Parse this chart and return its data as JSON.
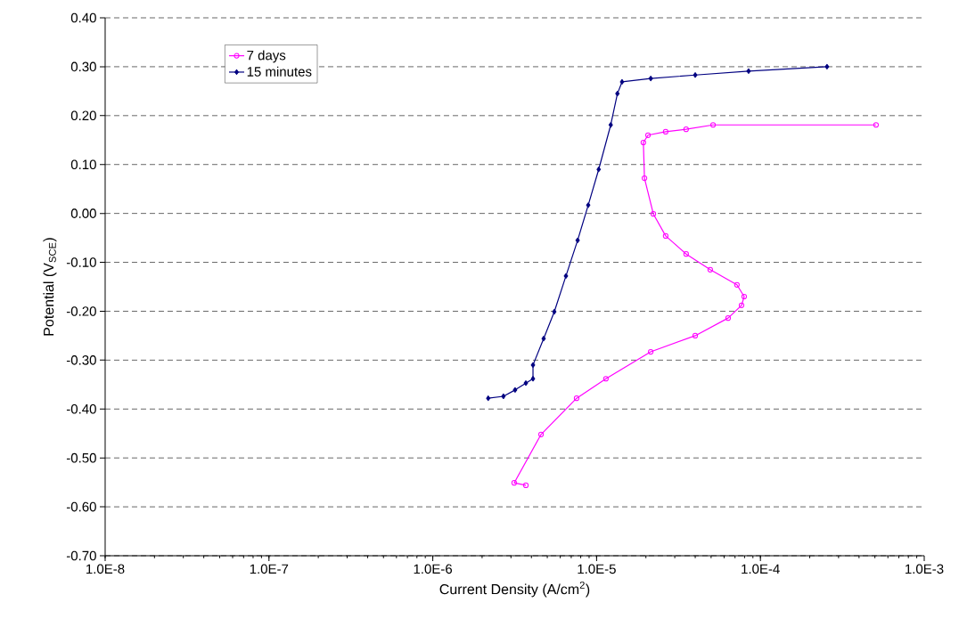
{
  "chart_data": {
    "type": "line",
    "xlabel": "Current Density (A/cm$^{2}$)",
    "ylabel": "Potential (V$_{SCE}$)",
    "log": "x",
    "grid": "y",
    "legend": "top left",
    "line_style": "solid",
    "xlim": [
      1e-08,
      0.001
    ],
    "ylim": [
      -0.7,
      0.4
    ],
    "xticks": [
      {
        "value": 1e-08,
        "label": "1.0E-8"
      },
      {
        "value": 1e-07,
        "label": "1.0E-7"
      },
      {
        "value": 1e-06,
        "label": "1.0E-6"
      },
      {
        "value": 1e-05,
        "label": "1.0E-5"
      },
      {
        "value": 0.0001,
        "label": "1.0E-4"
      },
      {
        "value": 0.001,
        "label": "1.0E-3"
      }
    ],
    "yticks": [
      {
        "value": -0.7,
        "label": "-0.70"
      },
      {
        "value": -0.6,
        "label": "-0.60"
      },
      {
        "value": -0.5,
        "label": "-0.50"
      },
      {
        "value": -0.4,
        "label": "-0.40"
      },
      {
        "value": -0.3,
        "label": "-0.30"
      },
      {
        "value": -0.2,
        "label": "-0.20"
      },
      {
        "value": -0.1,
        "label": "-0.10"
      },
      {
        "value": 0,
        "label": "0.00"
      },
      {
        "value": 0.1,
        "label": "0.10"
      },
      {
        "value": 0.2,
        "label": "0.20"
      },
      {
        "value": 0.3,
        "label": "0.30"
      },
      {
        "value": 0.4,
        "label": "0.40"
      }
    ],
    "series": [
      {
        "name": "7 days",
        "color": "#ff00ff",
        "marker": "circle",
        "x": [
          3.7e-06,
          3.14e-06,
          4.58e-06,
          7.55e-06,
          1.14e-05,
          2.14e-05,
          4e-05,
          6.35e-05,
          7.67e-05,
          7.96e-05,
          7.19e-05,
          4.94e-05,
          3.52e-05,
          2.64e-05,
          2.22e-05,
          1.96e-05,
          1.93e-05,
          2.06e-05,
          2.64e-05,
          3.52e-05,
          5.14e-05,
          0.000508
        ],
        "values": [
          -0.556,
          -0.551,
          -0.452,
          -0.378,
          -0.338,
          -0.283,
          -0.25,
          -0.214,
          -0.188,
          -0.17,
          -0.146,
          -0.115,
          -0.083,
          -0.046,
          -0.001,
          0.072,
          0.145,
          0.16,
          0.167,
          0.172,
          0.181,
          0.181
        ]
      },
      {
        "name": "15 minutes",
        "color": "#000080",
        "marker": "diamond",
        "x": [
          2.18e-06,
          2.7e-06,
          3.18e-06,
          3.7e-06,
          4.09e-06,
          4.09e-06,
          4.75e-06,
          5.52e-06,
          6.5e-06,
          7.66e-06,
          8.89e-06,
          1.03e-05,
          1.22e-05,
          1.34e-05,
          1.43e-05,
          2.14e-05,
          4e-05,
          8.47e-05,
          0.000255
        ],
        "values": [
          -0.378,
          -0.374,
          -0.361,
          -0.347,
          -0.338,
          -0.31,
          -0.256,
          -0.201,
          -0.128,
          -0.055,
          0.017,
          0.09,
          0.181,
          0.245,
          0.269,
          0.276,
          0.283,
          0.291,
          0.3
        ]
      }
    ]
  }
}
